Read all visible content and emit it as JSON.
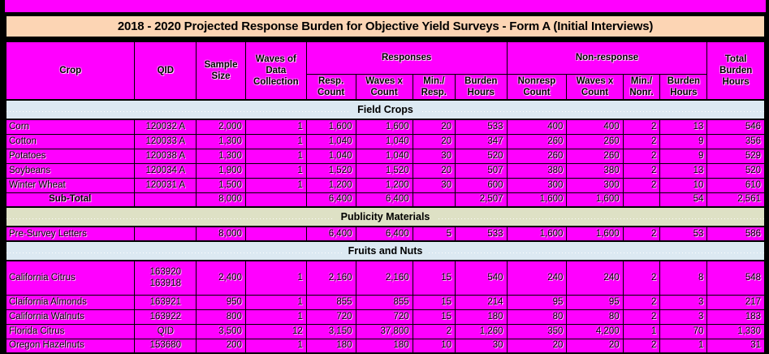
{
  "title": "2018 - 2020 Projected Response Burden for Objective Yield Surveys - Form A (Initial Interviews)",
  "colors": {
    "magenta": "#FF00FF",
    "title_bg": "#FCD5B4",
    "band_blue": "#DCE9F2",
    "band_olive": "#DEE1C5",
    "border": "#000000"
  },
  "table": {
    "headers": {
      "crop": "Crop",
      "qid": "QID",
      "sample_size": "Sample Size",
      "waves": "Waves of Data Collection",
      "responses_group": "Responses",
      "nonresponse_group": "Non-response",
      "resp_count": "Resp. Count",
      "resp_waves_x_count": "Waves x Count",
      "min_per_resp": "Min./ Resp.",
      "resp_burden_hours": "Burden Hours",
      "nonresp_count": "Nonresp Count",
      "nonresp_waves_x_count": "Waves x Count",
      "min_per_nonr": "Min./ Nonr.",
      "nonresp_burden_hours": "Burden Hours",
      "total_burden_hours": "Total Burden Hours"
    },
    "sections": [
      {
        "label": "Field Crops",
        "band": "blue",
        "rows": [
          {
            "cells": [
              "Corn",
              "120032 A",
              "2,000",
              "1",
              "1,600",
              "1,600",
              "20",
              "533",
              "400",
              "400",
              "2",
              "13",
              "546"
            ]
          },
          {
            "cells": [
              "Cotton",
              "120033 A",
              "1,300",
              "1",
              "1,040",
              "1,040",
              "20",
              "347",
              "260",
              "260",
              "2",
              "9",
              "356"
            ]
          },
          {
            "cells": [
              "Potatoes",
              "120038 A",
              "1,300",
              "1",
              "1,040",
              "1,040",
              "30",
              "520",
              "260",
              "260",
              "2",
              "9",
              "529"
            ]
          },
          {
            "cells": [
              "Soybeans",
              "120034 A",
              "1,900",
              "1",
              "1,520",
              "1,520",
              "20",
              "507",
              "380",
              "380",
              "2",
              "13",
              "520"
            ]
          },
          {
            "cells": [
              "Winter Wheat",
              "120031 A",
              "1,500",
              "1",
              "1,200",
              "1,200",
              "30",
              "600",
              "300",
              "300",
              "2",
              "10",
              "610"
            ]
          },
          {
            "cells": [
              "Sub-Total",
              "",
              "8,000",
              "",
              "6,400",
              "6,400",
              "",
              "2,507",
              "1,600",
              "1,600",
              "",
              "54",
              "2,561"
            ],
            "bold": true
          }
        ]
      },
      {
        "label": "Publicity Materials",
        "band": "olive",
        "rows": [
          {
            "cells": [
              "Pre-Survey Letters",
              "",
              "8,000",
              "",
              "6,400",
              "6,400",
              "5",
              "533",
              "1,600",
              "1,600",
              "2",
              "53",
              "586"
            ]
          }
        ]
      },
      {
        "label": "Fruits and Nuts",
        "band": "blue",
        "rows": [
          {
            "cells": [
              "California Citrus",
              "163920\n163918",
              "2,400",
              "1",
              "2,160",
              "2,160",
              "15",
              "540",
              "240",
              "240",
              "2",
              "8",
              "548"
            ],
            "tall": true
          },
          {
            "cells": [
              "Claifornia Almonds",
              "163921",
              "950",
              "1",
              "855",
              "855",
              "15",
              "214",
              "95",
              "95",
              "2",
              "3",
              "217"
            ]
          },
          {
            "cells": [
              "California Walnuts",
              "163922",
              "800",
              "1",
              "720",
              "720",
              "15",
              "180",
              "80",
              "80",
              "2",
              "3",
              "183"
            ]
          },
          {
            "cells": [
              "Florida Citrus",
              "QID",
              "3,500",
              "12",
              "3,150",
              "37,800",
              "2",
              "1,260",
              "350",
              "4,200",
              "1",
              "70",
              "1,330"
            ]
          },
          {
            "cells": [
              "Oregon Hazelnuts",
              "153680",
              "200",
              "1",
              "180",
              "180",
              "10",
              "30",
              "20",
              "20",
              "2",
              "1",
              "31"
            ]
          }
        ]
      }
    ],
    "column_names": [
      "crop-cell",
      "qid-cell",
      "sample-size-cell",
      "waves-cell",
      "resp-count-cell",
      "resp-waves-x-count-cell",
      "min-resp-cell",
      "resp-burden-hours-cell",
      "nonresp-count-cell",
      "nonresp-waves-x-count-cell",
      "min-nonr-cell",
      "nonresp-burden-hours-cell",
      "total-burden-hours-cell"
    ]
  }
}
